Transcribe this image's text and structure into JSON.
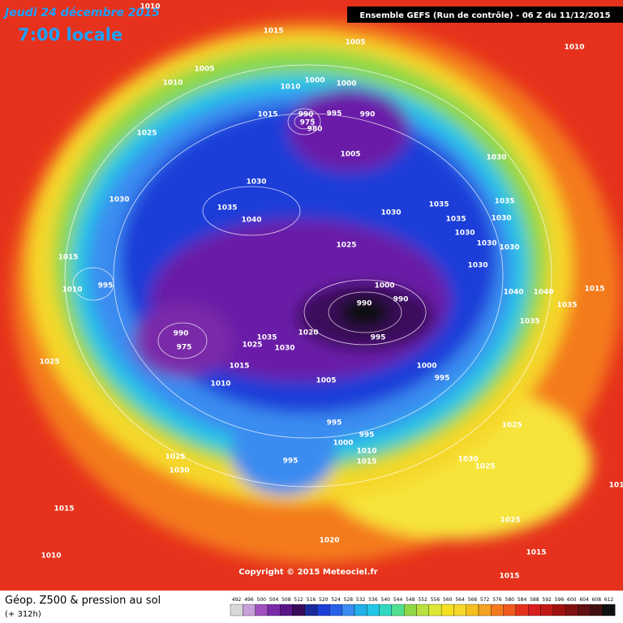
{
  "header": {
    "date": "Jeudi 24 décembre 2015",
    "time": "7:00 locale",
    "run": "Ensemble GEFS  (Run de contrôle)  -  06 Z du 11/12/2015"
  },
  "map": {
    "copyright": "Copyright © 2015 Meteociel.fr",
    "isobar_labels": [
      "1010",
      "1015",
      "1005",
      "1010",
      "1005",
      "1010",
      "1000",
      "1010",
      "1000",
      "1015",
      "990",
      "995",
      "990",
      "975",
      "980",
      "1025",
      "1005",
      "1030",
      "1030",
      "1030",
      "1035",
      "1040",
      "1030",
      "1035",
      "1035",
      "1035",
      "1030",
      "1030",
      "1030",
      "1030",
      "1030",
      "1015",
      "1025",
      "995",
      "1010",
      "1000",
      "990",
      "990",
      "1040",
      "1040",
      "1015",
      "1035",
      "1035",
      "1020",
      "1035",
      "990",
      "975",
      "1025",
      "1030",
      "995",
      "1025",
      "1015",
      "1010",
      "1000",
      "995",
      "1005",
      "1025",
      "995",
      "1000",
      "995",
      "1010",
      "1015",
      "995",
      "1030",
      "1025",
      "1025",
      "1030",
      "1015",
      "1025",
      "1020",
      "1015",
      "1010",
      "1015",
      "101"
    ]
  },
  "footer": {
    "title": "Géop. Z500 & pression au sol",
    "lead": "(+ 312h)",
    "scale": [
      492,
      496,
      500,
      504,
      508,
      512,
      516,
      520,
      524,
      528,
      532,
      536,
      540,
      544,
      548,
      552,
      556,
      560,
      564,
      568,
      572,
      576,
      580,
      584,
      588,
      592,
      596,
      600,
      604,
      608,
      612
    ]
  }
}
